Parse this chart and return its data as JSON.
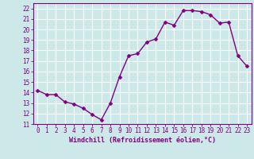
{
  "x": [
    0,
    1,
    2,
    3,
    4,
    5,
    6,
    7,
    8,
    9,
    10,
    11,
    12,
    13,
    14,
    15,
    16,
    17,
    18,
    19,
    20,
    21,
    22,
    23
  ],
  "y": [
    14.2,
    13.8,
    13.8,
    13.1,
    12.9,
    12.5,
    11.9,
    11.4,
    13.0,
    15.5,
    17.5,
    17.7,
    18.8,
    19.1,
    20.7,
    20.4,
    21.8,
    21.8,
    21.7,
    21.4,
    20.6,
    20.7,
    17.5,
    16.5
  ],
  "line_color": "#800080",
  "marker": "D",
  "marker_size": 2.5,
  "bg_color": "#cce8e8",
  "grid_color": "#ffffff",
  "xlabel": "Windchill (Refroidissement éolien,°C)",
  "xlim": [
    -0.5,
    23.5
  ],
  "ylim": [
    11,
    22.5
  ],
  "yticks": [
    11,
    12,
    13,
    14,
    15,
    16,
    17,
    18,
    19,
    20,
    21,
    22
  ],
  "xticks": [
    0,
    1,
    2,
    3,
    4,
    5,
    6,
    7,
    8,
    9,
    10,
    11,
    12,
    13,
    14,
    15,
    16,
    17,
    18,
    19,
    20,
    21,
    22,
    23
  ],
  "axis_fontsize": 6.0,
  "tick_fontsize": 5.5,
  "line_width": 1.0
}
